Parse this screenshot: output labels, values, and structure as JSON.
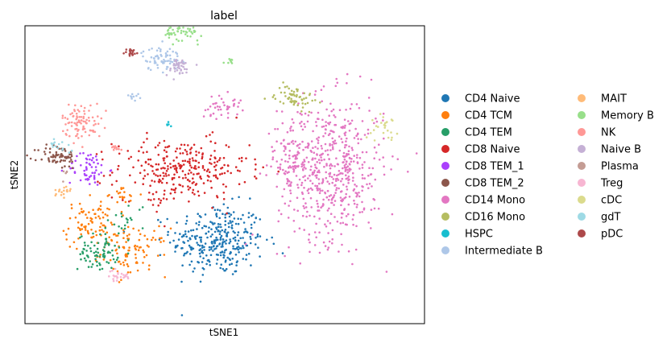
{
  "chart_data": {
    "type": "scatter",
    "title": "label",
    "xlabel": "tSNE1",
    "ylabel": "tSNE2",
    "xlim": [
      -60,
      60
    ],
    "ylim": [
      -50,
      50
    ],
    "grid": false,
    "ticks_shown": false,
    "legend_placement": "right, outside plot, two columns",
    "series": [
      {
        "name": "CD4 Naive",
        "color": "#1f77b4",
        "clusters": [
          {
            "center": [
              -2,
              -22
            ],
            "spread": [
              7,
              6
            ],
            "n": 320
          }
        ]
      },
      {
        "name": "CD4 TCM",
        "color": "#ff7f0e",
        "clusters": [
          {
            "center": [
              -40,
              -17
            ],
            "spread": [
              4,
              4
            ],
            "n": 90
          },
          {
            "center": [
              -27,
              -26
            ],
            "spread": [
              5,
              4
            ],
            "n": 90
          },
          {
            "center": [
              -31,
              -7
            ],
            "spread": [
              3,
              2
            ],
            "n": 20
          }
        ]
      },
      {
        "name": "CD4 TEM",
        "color": "#279e68",
        "clusters": [
          {
            "center": [
              -38,
              -26
            ],
            "spread": [
              3,
              3
            ],
            "n": 80
          },
          {
            "center": [
              -29,
              -15
            ],
            "spread": [
              3,
              3
            ],
            "n": 20
          }
        ]
      },
      {
        "name": "CD8 Naive",
        "color": "#d62728",
        "clusters": [
          {
            "center": [
              -13,
              2
            ],
            "spread": [
              10,
              5
            ],
            "n": 280
          },
          {
            "center": [
              -19,
              -8
            ],
            "spread": [
              2,
              2
            ],
            "n": 15
          }
        ]
      },
      {
        "name": "CD8 TEM_1",
        "color": "#aa40fc",
        "clusters": [
          {
            "center": [
              -41,
              2
            ],
            "spread": [
              3,
              3
            ],
            "n": 60
          }
        ]
      },
      {
        "name": "CD8 TEM_2",
        "color": "#8c564b",
        "clusters": [
          {
            "center": [
              -50,
              6
            ],
            "spread": [
              3,
              2
            ],
            "n": 70
          }
        ]
      },
      {
        "name": "CD14 Mono",
        "color": "#e377c2",
        "clusters": [
          {
            "center": [
              32,
              2
            ],
            "spread": [
              8,
              12
            ],
            "n": 560
          },
          {
            "center": [
              20,
              7
            ],
            "spread": [
              3,
              6
            ],
            "n": 60
          },
          {
            "center": [
              -1,
              23
            ],
            "spread": [
              3,
              2
            ],
            "n": 40
          }
        ]
      },
      {
        "name": "CD16 Mono",
        "color": "#b5bd61",
        "clusters": [
          {
            "center": [
              21,
              26
            ],
            "spread": [
              3,
              2
            ],
            "n": 60
          }
        ]
      },
      {
        "name": "HSPC",
        "color": "#17becf",
        "clusters": [
          {
            "center": [
              -17,
              17
            ],
            "spread": [
              0.5,
              0.5
            ],
            "n": 5
          }
        ]
      },
      {
        "name": "Intermediate B",
        "color": "#aec7e8",
        "clusters": [
          {
            "center": [
              -19,
              39
            ],
            "spread": [
              3,
              2
            ],
            "n": 70
          },
          {
            "center": [
              -27,
              26
            ],
            "spread": [
              1,
              1
            ],
            "n": 10
          }
        ]
      },
      {
        "name": "MAIT",
        "color": "#ffbb78",
        "clusters": [
          {
            "center": [
              -49,
              -6
            ],
            "spread": [
              1.5,
              1.5
            ],
            "n": 18
          }
        ]
      },
      {
        "name": "Memory B",
        "color": "#98df8a",
        "clusters": [
          {
            "center": [
              -12,
              49
            ],
            "spread": [
              3,
              2
            ],
            "n": 90
          },
          {
            "center": [
              2,
              38
            ],
            "spread": [
              1,
              0.5
            ],
            "n": 8
          }
        ]
      },
      {
        "name": "NK",
        "color": "#ff9896",
        "clusters": [
          {
            "center": [
              -43,
              18
            ],
            "spread": [
              3,
              3
            ],
            "n": 90
          },
          {
            "center": [
              -33,
              9
            ],
            "spread": [
              1,
              1
            ],
            "n": 10
          }
        ]
      },
      {
        "name": "Naive B",
        "color": "#c5b0d5",
        "clusters": [
          {
            "center": [
              -14,
              36
            ],
            "spread": [
              2,
              1.5
            ],
            "n": 40
          }
        ]
      },
      {
        "name": "Plasma",
        "color": "#c49c94",
        "clusters": [
          {
            "center": [
              -48,
              0
            ],
            "spread": [
              1,
              1
            ],
            "n": 5
          }
        ]
      },
      {
        "name": "Treg",
        "color": "#f7b6d2",
        "clusters": [
          {
            "center": [
              -32,
              -34
            ],
            "spread": [
              2,
              1
            ],
            "n": 25
          }
        ]
      },
      {
        "name": "cDC",
        "color": "#dbdb8d",
        "clusters": [
          {
            "center": [
              48,
              16
            ],
            "spread": [
              2,
              2
            ],
            "n": 25
          }
        ]
      },
      {
        "name": "gdT",
        "color": "#9edae5",
        "clusters": [
          {
            "center": [
              -49,
              10
            ],
            "spread": [
              2,
              1
            ],
            "n": 15
          }
        ]
      },
      {
        "name": "pDC",
        "color": "#ad494a",
        "clusters": [
          {
            "center": [
              -28,
              41
            ],
            "spread": [
              1,
              0.7
            ],
            "n": 20
          }
        ]
      }
    ]
  }
}
